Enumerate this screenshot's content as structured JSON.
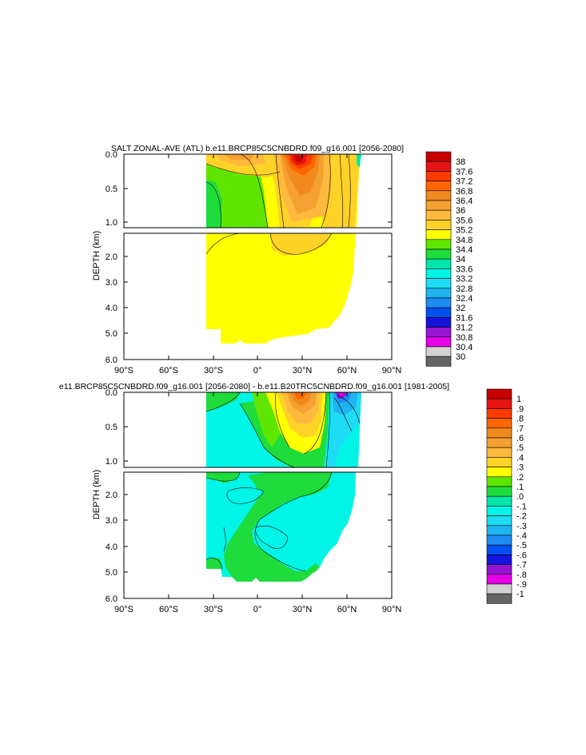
{
  "chart_data": [
    {
      "type": "heatmap",
      "title": "SALT ZONAL-AVE (ATL) b.e11.BRCP85C5CNBDRD.f09_g16.001 [2056-2080]",
      "ylabel": "DEPTH (km)",
      "xlabel": "",
      "x_ticks": [
        "90°S",
        "60°S",
        "30°S",
        "0°",
        "30°N",
        "60°N",
        "90°N"
      ],
      "upper_y_ticks": [
        "0.0",
        "0.5",
        "1.0"
      ],
      "lower_y_ticks": [
        "2.0",
        "3.0",
        "4.0",
        "5.0",
        "6.0"
      ],
      "xlim": [
        -90,
        90
      ],
      "ylim_upper_km": [
        0,
        1.1
      ],
      "ylim_lower_km": [
        1.1,
        6
      ],
      "colorbar": {
        "labels": [
          "38",
          "37.6",
          "37.2",
          "36.8",
          "36.4",
          "36",
          "35.6",
          "35.2",
          "34.8",
          "34.4",
          "34",
          "33.6",
          "33.2",
          "32.8",
          "32.4",
          "32",
          "31.6",
          "31.2",
          "30.8",
          "30.4",
          "30"
        ],
        "colors": [
          "#c80000",
          "#e61414",
          "#ff3c00",
          "#ff6600",
          "#f08a1e",
          "#f5a032",
          "#ffb93c",
          "#ffd228",
          "#ffff00",
          "#5fe600",
          "#1edc3c",
          "#00e6aa",
          "#00f5e6",
          "#1edcf5",
          "#1eb4f0",
          "#1e8cf0",
          "#0050f0",
          "#1414dc",
          "#9614d2",
          "#e600e6",
          "#d2d2d2",
          "#646464"
        ]
      },
      "summary": {
        "background_value": 35.0,
        "max_value_near": {
          "lat": 25,
          "depth_km": 0.05,
          "value": 37.6
        },
        "deep_water_value": 35.0
      }
    },
    {
      "type": "heatmap",
      "title": "e11.BRCP85C5CNBDRD.f09_g16.001 [2056-2080] - b.e11.B20TRC5CNBDRD.f09_g16.001 [1981-2005]",
      "ylabel": "DEPTH (km)",
      "xlabel": "",
      "x_ticks": [
        "90°S",
        "60°S",
        "30°S",
        "0°",
        "30°N",
        "60°N",
        "90°N"
      ],
      "upper_y_ticks": [
        "0.0",
        "0.5",
        "1.0"
      ],
      "lower_y_ticks": [
        "2.0",
        "3.0",
        "4.0",
        "5.0",
        "6.0"
      ],
      "xlim": [
        -90,
        90
      ],
      "ylim_upper_km": [
        0,
        1.1
      ],
      "ylim_lower_km": [
        1.1,
        6
      ],
      "colorbar": {
        "labels": [
          "1",
          ".9",
          ".8",
          ".7",
          ".6",
          ".5",
          ".4",
          ".3",
          ".2",
          ".1",
          ".0",
          "-.1",
          "-.2",
          "-.3",
          "-.4",
          "-.5",
          "-.6",
          "-.7",
          "-.8",
          "-.9",
          "-1"
        ],
        "colors": [
          "#c80000",
          "#e61414",
          "#ff3c00",
          "#ff6600",
          "#f08a1e",
          "#f5a032",
          "#ffb93c",
          "#ffd228",
          "#ffff00",
          "#5fe600",
          "#1edc3c",
          "#00e6aa",
          "#00f5e6",
          "#1edcf5",
          "#1eb4f0",
          "#1e8cf0",
          "#0050f0",
          "#1414dc",
          "#9614d2",
          "#e600e6",
          "#d2d2d2",
          "#646464"
        ]
      },
      "summary": {
        "background_value": -0.05,
        "max_value_near": {
          "lat": 25,
          "depth_km": 0.05,
          "value": 0.6
        },
        "min_value_near": {
          "lat": 50,
          "depth_km": 0.02,
          "value": -0.8
        }
      }
    }
  ]
}
